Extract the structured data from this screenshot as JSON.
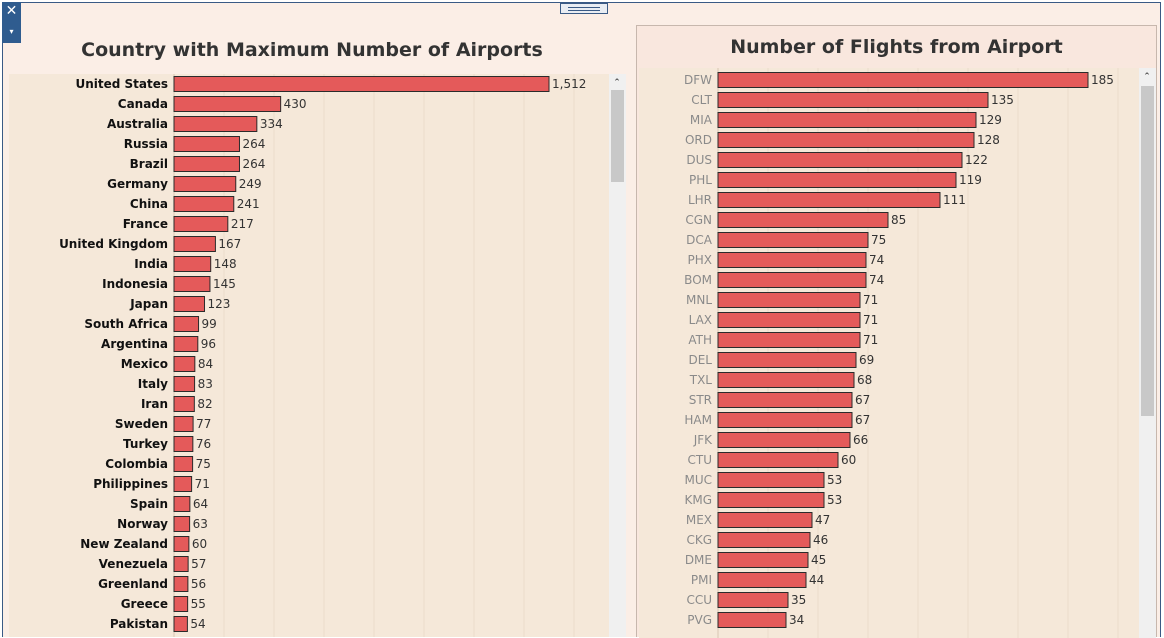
{
  "chart_data": [
    {
      "type": "bar",
      "orientation": "horizontal",
      "title": "Country with Maximum Number of Airports",
      "categories": [
        "United States",
        "Canada",
        "Australia",
        "Russia",
        "Brazil",
        "Germany",
        "China",
        "France",
        "United Kingdom",
        "India",
        "Indonesia",
        "Japan",
        "South Africa",
        "Argentina",
        "Mexico",
        "Italy",
        "Iran",
        "Sweden",
        "Turkey",
        "Colombia",
        "Philippines",
        "Spain",
        "Norway",
        "New Zealand",
        "Venezuela",
        "Greenland",
        "Greece",
        "Pakistan"
      ],
      "values": [
        1512,
        430,
        334,
        264,
        264,
        249,
        241,
        217,
        167,
        148,
        145,
        123,
        99,
        96,
        84,
        83,
        82,
        77,
        76,
        75,
        71,
        64,
        63,
        60,
        57,
        56,
        55,
        54
      ],
      "value_labels": [
        "1,512",
        "430",
        "334",
        "264",
        "264",
        "249",
        "241",
        "217",
        "167",
        "148",
        "145",
        "123",
        "99",
        "96",
        "84",
        "83",
        "82",
        "77",
        "76",
        "75",
        "71",
        "64",
        "63",
        "60",
        "57",
        "56",
        "55",
        "54"
      ],
      "xlim": [
        0,
        1600
      ],
      "grid": true,
      "bar_color": "#e45a5a"
    },
    {
      "type": "bar",
      "orientation": "horizontal",
      "title": "Number of Flights from Airport",
      "categories": [
        "DFW",
        "CLT",
        "MIA",
        "ORD",
        "DUS",
        "PHL",
        "LHR",
        "CGN",
        "DCA",
        "PHX",
        "BOM",
        "MNL",
        "LAX",
        "ATH",
        "DEL",
        "TXL",
        "STR",
        "HAM",
        "JFK",
        "CTU",
        "MUC",
        "KMG",
        "MEX",
        "CKG",
        "DME",
        "PMI",
        "CCU",
        "PVG"
      ],
      "values": [
        185,
        135,
        129,
        128,
        122,
        119,
        111,
        85,
        75,
        74,
        74,
        71,
        71,
        71,
        69,
        68,
        67,
        67,
        66,
        60,
        53,
        53,
        47,
        46,
        45,
        44,
        35,
        34
      ],
      "value_labels": [
        "185",
        "135",
        "129",
        "128",
        "122",
        "119",
        "111",
        "85",
        "75",
        "74",
        "74",
        "71",
        "71",
        "71",
        "69",
        "68",
        "67",
        "67",
        "66",
        "60",
        "53",
        "53",
        "47",
        "46",
        "45",
        "44",
        "35",
        "34"
      ],
      "xlim": [
        0,
        200
      ],
      "grid": true,
      "bar_color": "#e45a5a"
    }
  ],
  "colors": {
    "bar": "#e45a5a",
    "bar_edge": "#2b2b2b",
    "plot_bg": "#f5e8d9",
    "panel_bg": "#fbeee6",
    "accent": "#2f5c8f"
  },
  "icons": {
    "close": "close-icon",
    "dropdown": "chevron-down-icon",
    "scroll_up": "arrow-up-icon"
  },
  "glyphs": {
    "close": "✕",
    "dropdown": "▾",
    "scroll_up": "⌃"
  }
}
